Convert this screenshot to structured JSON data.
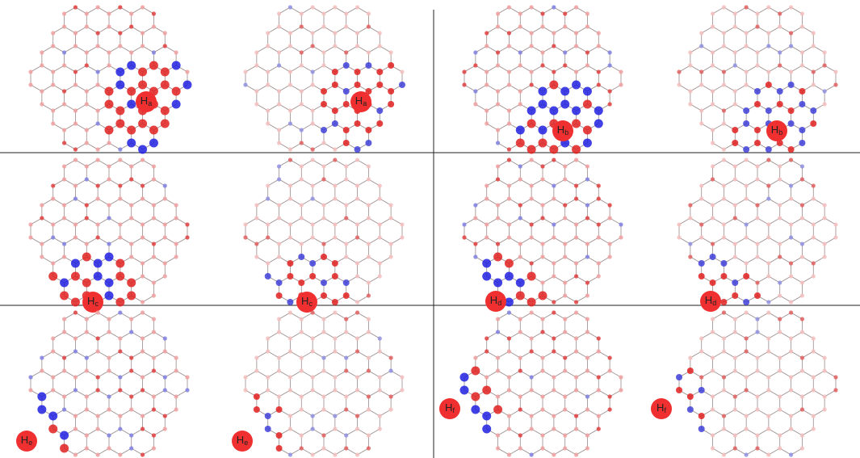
{
  "panels": [
    {
      "label_main": "H",
      "label_sub": "a"
    },
    {
      "label_main": "H",
      "label_sub": "b"
    },
    {
      "label_main": "H",
      "label_sub": "c"
    },
    {
      "label_main": "H",
      "label_sub": "d"
    },
    {
      "label_main": "H",
      "label_sub": "e"
    },
    {
      "label_main": "H",
      "label_sub": "f"
    }
  ]
}
